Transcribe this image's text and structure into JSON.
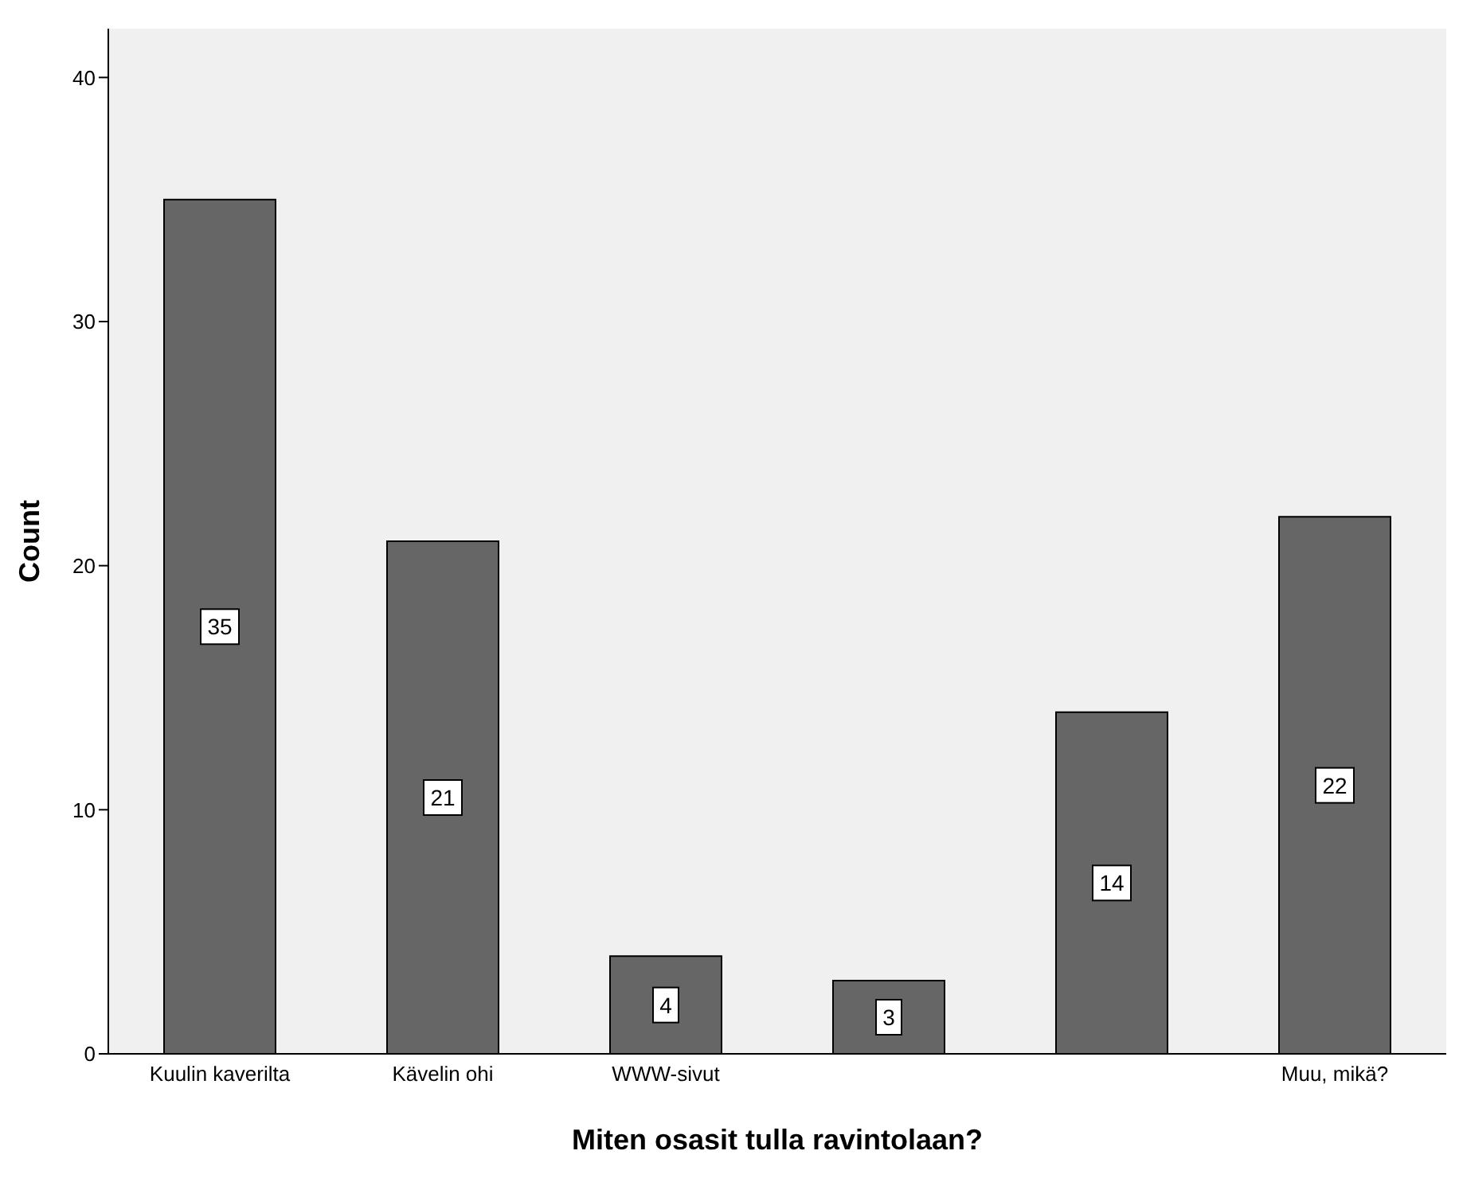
{
  "chart_data": {
    "type": "bar",
    "xlabel": "Miten osasit tulla ravintolaan?",
    "ylabel": "Count",
    "categories": [
      "Kuulin kaverilta",
      "Kävelin ohi",
      "WWW-sivut",
      null,
      null,
      "Muu, mikä?"
    ],
    "values": [
      35,
      21,
      4,
      3,
      14,
      22
    ],
    "color": "#666666",
    "ylim": [
      0,
      42
    ],
    "yticks": [
      0,
      10,
      20,
      30,
      40
    ],
    "data_labels": true
  }
}
